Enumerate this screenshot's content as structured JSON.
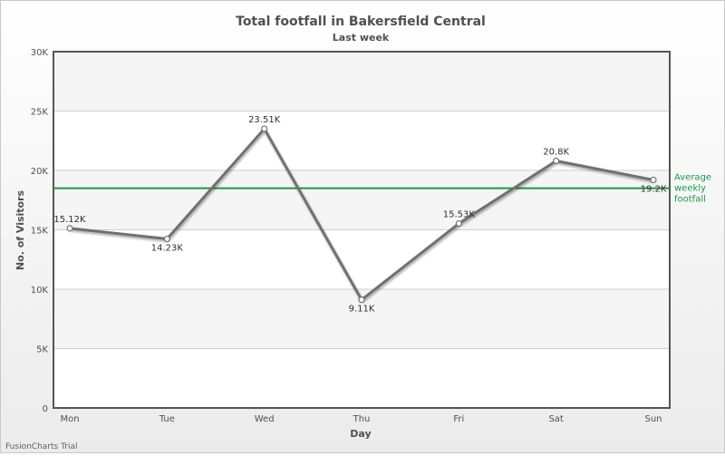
{
  "chart_data": {
    "type": "line",
    "title": "Total footfall in Bakersfield Central",
    "subtitle": "Last week",
    "xlabel": "Day",
    "ylabel": "No. of Visitors",
    "categories": [
      "Mon",
      "Tue",
      "Wed",
      "Thu",
      "Fri",
      "Sat",
      "Sun"
    ],
    "values": [
      15123,
      14233,
      23507,
      9110,
      15529,
      20803,
      19202
    ],
    "value_labels": [
      "15.12K",
      "14.23K",
      "23.51K",
      "9.11K",
      "15.53K",
      "20.8K",
      "19.2K"
    ],
    "label_positions": [
      "above",
      "below",
      "above",
      "below",
      "above",
      "above",
      "below"
    ],
    "ylim": [
      0,
      30000
    ],
    "yticks": [
      0,
      5000,
      10000,
      15000,
      20000,
      25000,
      30000
    ],
    "ytick_labels": [
      "0",
      "5K",
      "10K",
      "15K",
      "20K",
      "25K",
      "30K"
    ],
    "grid": true,
    "trendline": {
      "value": 18500,
      "label": [
        "Average",
        "weekly",
        "footfall"
      ],
      "color": "#1a9a4a"
    },
    "line_color": "#707070",
    "alternate_band_color": "#f5f5f5"
  },
  "watermark": "FusionCharts Trial"
}
